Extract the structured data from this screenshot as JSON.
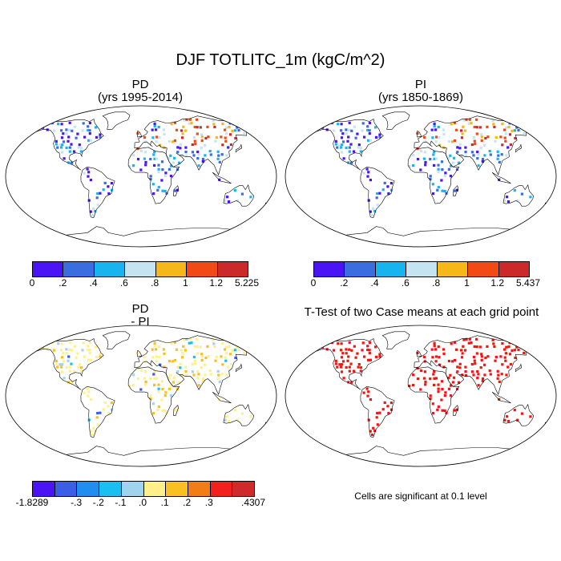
{
  "main_title": "DJF TOTLITC_1m (kgC/m^2)",
  "panels": [
    {
      "id": "pd",
      "title": "PD",
      "subtitle": "(yrs 1995-2014)",
      "kind": "abs"
    },
    {
      "id": "pi",
      "title": "PI",
      "subtitle": "(yrs 1850-1869)",
      "kind": "abs"
    },
    {
      "id": "diff",
      "title": "PD",
      "subtitle": "- PI",
      "kind": "diff"
    },
    {
      "id": "ttest",
      "title": "T-Test of two Case means at each grid point",
      "subtitle": "",
      "kind": "sig"
    }
  ],
  "colorbars": {
    "pd": {
      "colors": [
        "#4a14f5",
        "#3a6ee0",
        "#18b4f0",
        "#c4e4f2",
        "#f5b818",
        "#f24a16",
        "#cc2a2a"
      ],
      "labels": [
        "0",
        ".2",
        ".4",
        ".6",
        ".8",
        "1",
        "1.2",
        "5.225"
      ]
    },
    "pi": {
      "colors": [
        "#4a14f5",
        "#3a6ee0",
        "#18b4f0",
        "#c4e4f2",
        "#f5b818",
        "#f24a16",
        "#cc2a2a"
      ],
      "labels": [
        "0",
        ".2",
        ".4",
        ".6",
        ".8",
        "1",
        "1.2",
        "5.437"
      ]
    },
    "diff": {
      "colors": [
        "#4a14f5",
        "#3a5ee8",
        "#1e8ef0",
        "#18c0f2",
        "#a0d4ee",
        "#fff08c",
        "#f8c020",
        "#f47c14",
        "#f42020",
        "#d02a2a"
      ],
      "labels": [
        "-1.8289",
        "",
        "-.3",
        "-.2",
        "-.1",
        ".0",
        ".1",
        ".2",
        ".3",
        "",
        ".4307"
      ]
    }
  },
  "significance_note": "Cells are significant at 0.1 level",
  "legend_colors": {
    "sig": "#ff1010"
  }
}
